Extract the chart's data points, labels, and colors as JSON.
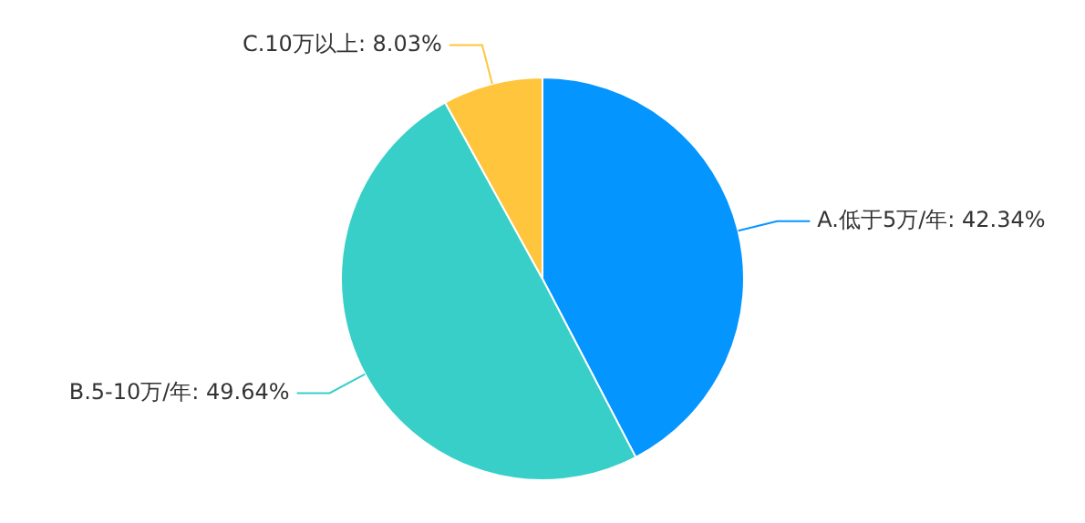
{
  "chart_data": {
    "type": "pie",
    "categories": [
      "A.低于5万/年",
      "B.5-10万/年",
      "C.10万以上"
    ],
    "values": [
      42.34,
      49.64,
      8.03
    ],
    "value_labels": [
      "42.34%",
      "49.64%",
      "8.03%"
    ],
    "colors": [
      "#0595ff",
      "#38cfc9",
      "#ffc53d"
    ],
    "legend": false
  }
}
